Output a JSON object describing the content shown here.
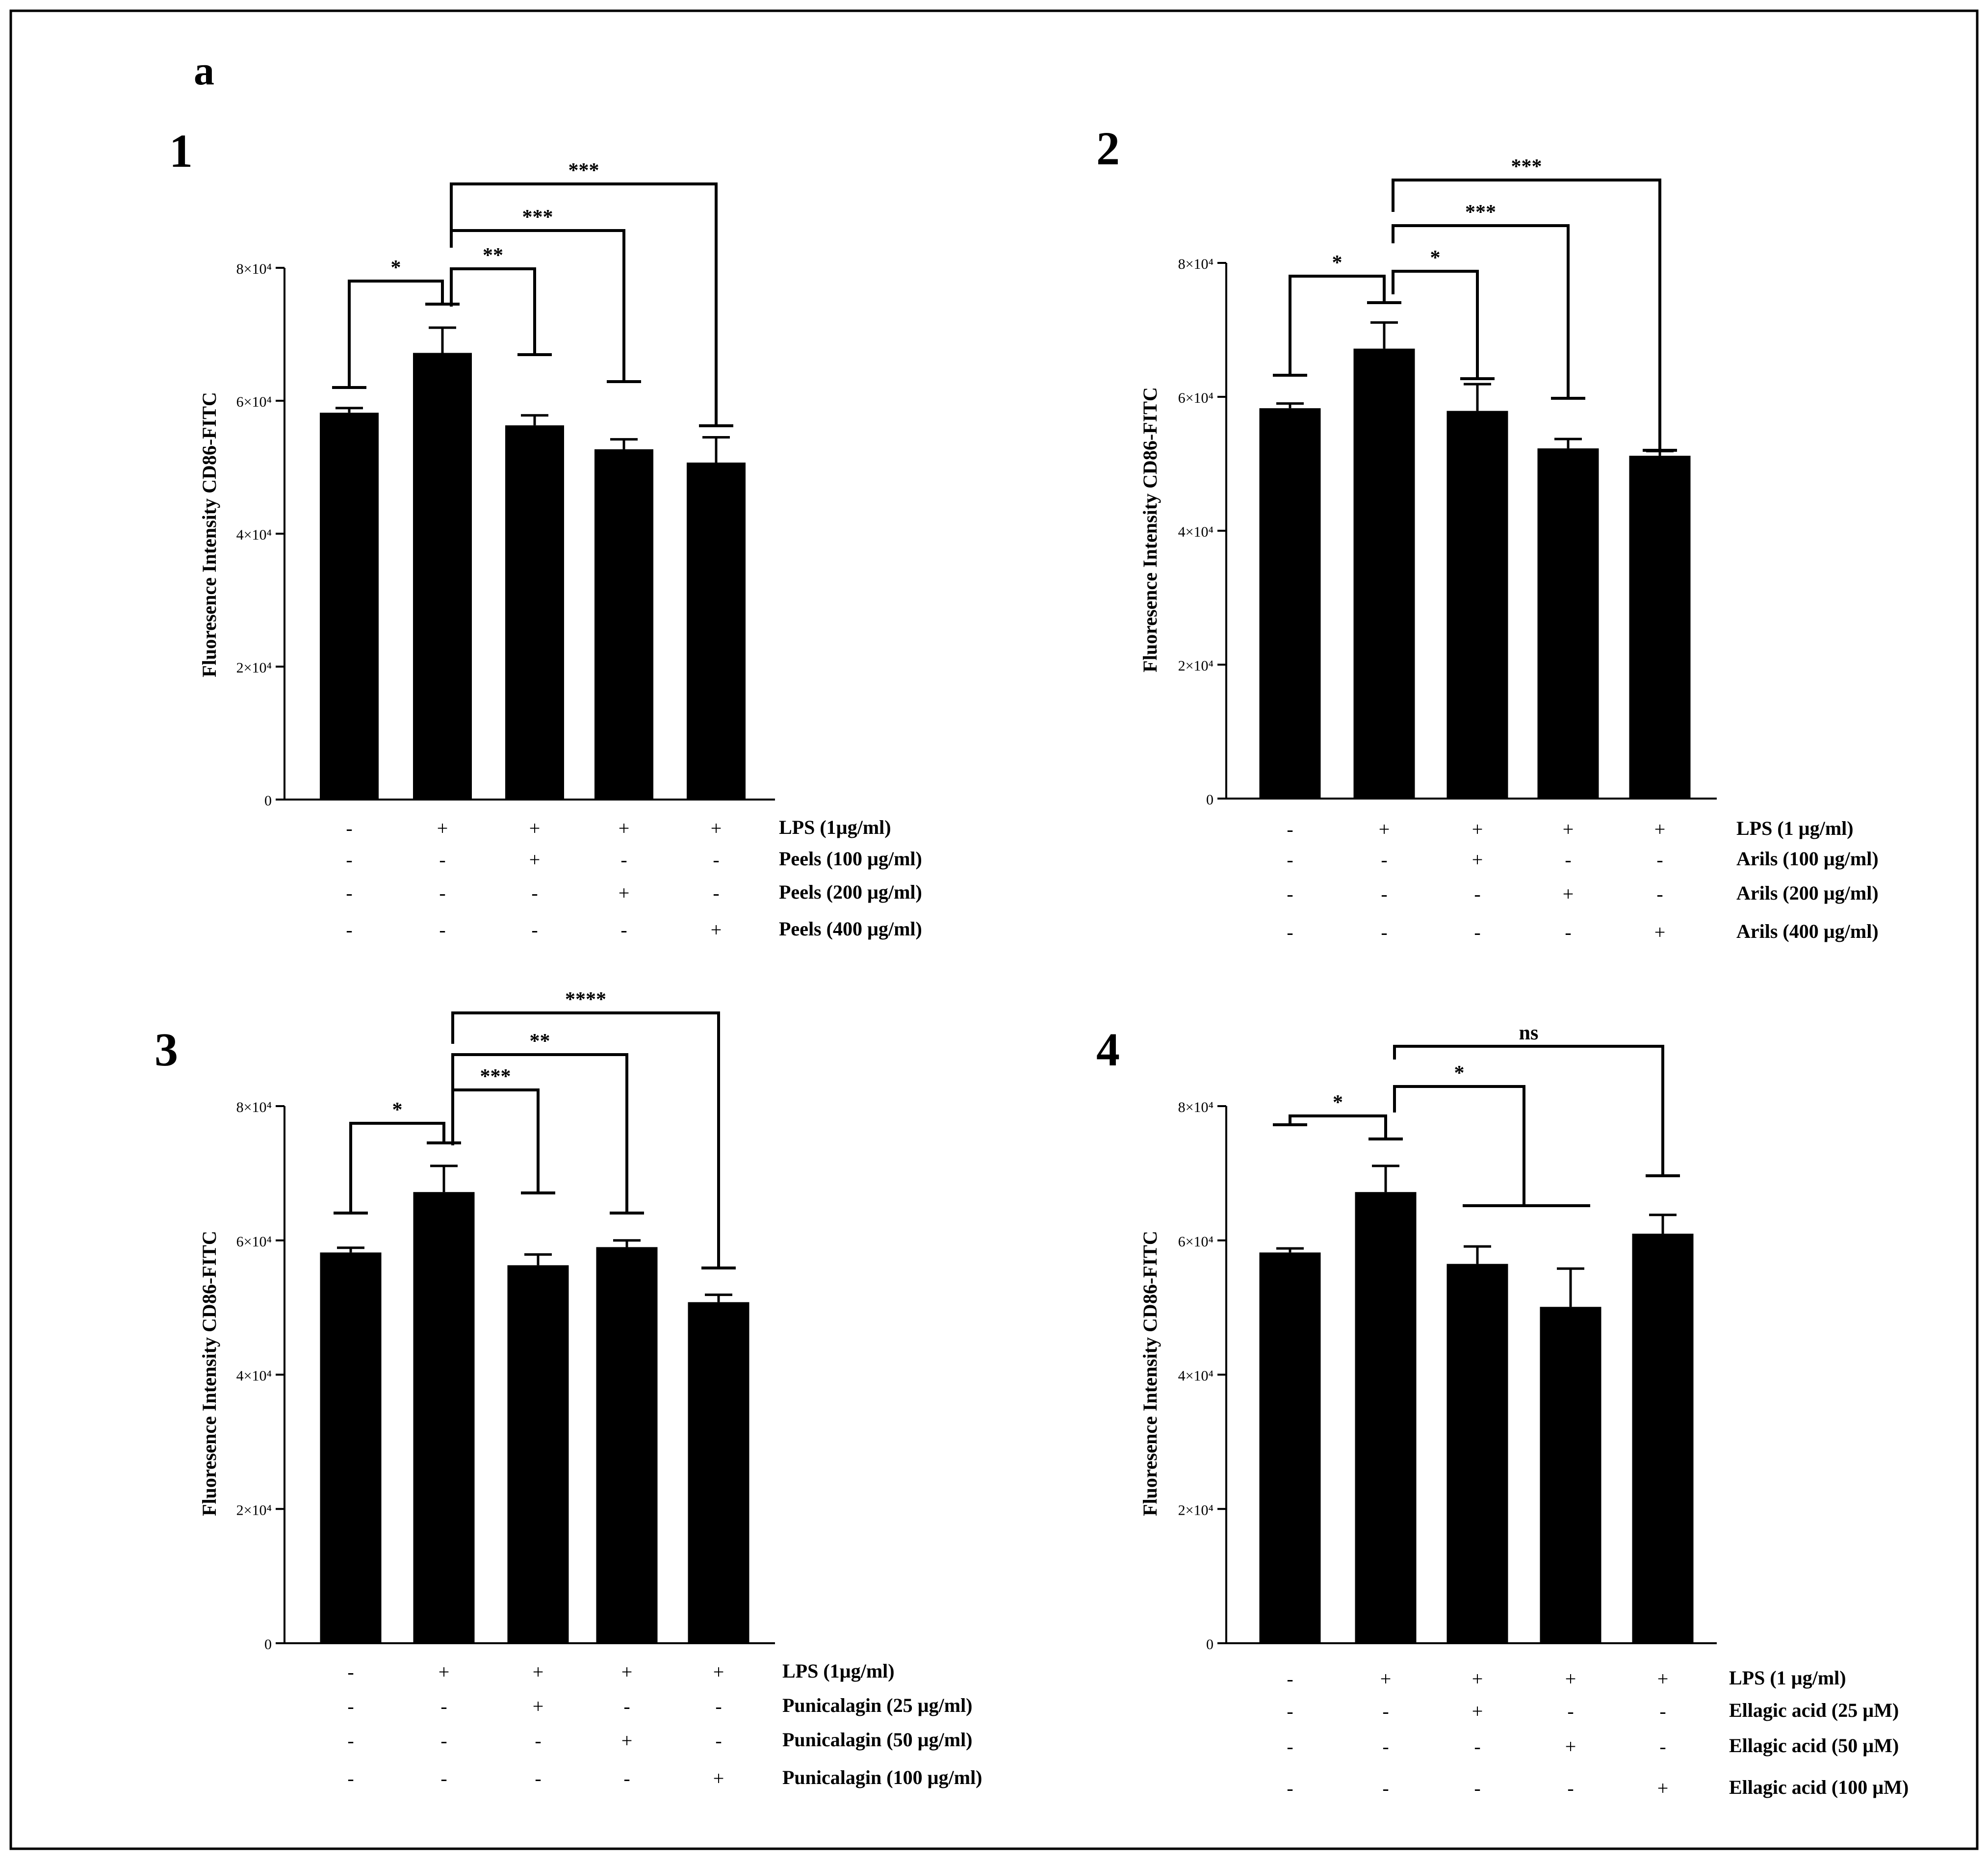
{
  "figure": {
    "label": "a",
    "y_axis_label": "Fluoresence Intensity CD86-FITC",
    "y_ticks": [
      {
        "value": 0,
        "label": "0"
      },
      {
        "value": 20000,
        "label": "2×10⁴"
      },
      {
        "value": 40000,
        "label": "4×10⁴"
      },
      {
        "value": 60000,
        "label": "6×10⁴"
      },
      {
        "value": 80000,
        "label": "8×10⁴"
      }
    ],
    "colors": {
      "bar": "#000000",
      "text": "#000000",
      "frame": "#000000",
      "background": "#ffffff"
    }
  },
  "chart_data": [
    {
      "type": "bar",
      "panel_label": "1",
      "ylabel": "Fluoresence Intensity CD86-FITC",
      "ylim": [
        0,
        80000
      ],
      "values": [
        58200,
        67200,
        56300,
        52700,
        50700
      ],
      "errors": [
        700,
        3800,
        1500,
        1500,
        3800
      ],
      "treatments": [
        {
          "label": "LPS  (1µg/ml)",
          "signs": [
            "-",
            "+",
            "+",
            "+",
            "+"
          ]
        },
        {
          "label": "Peels (100 µg/ml)",
          "signs": [
            "-",
            "-",
            "+",
            "-",
            "-"
          ]
        },
        {
          "label": "Peels (200 µg/ml)",
          "signs": [
            "-",
            "-",
            "-",
            "+",
            "-"
          ]
        },
        {
          "label": "Peels (400 µg/ml)",
          "signs": [
            "-",
            "-",
            "-",
            "-",
            "+"
          ]
        }
      ],
      "comparisons": [
        {
          "from": 0,
          "to": 1,
          "label": "*"
        },
        {
          "from": 1,
          "to": 2,
          "label": "**"
        },
        {
          "from": 1,
          "to": 3,
          "label": "***"
        },
        {
          "from": 1,
          "to": 4,
          "label": "***"
        }
      ]
    },
    {
      "type": "bar",
      "panel_label": "2",
      "ylabel": "Fluoresence Intensity CD86-FITC",
      "ylim": [
        0,
        80000
      ],
      "values": [
        58300,
        67200,
        57900,
        52300,
        51200
      ],
      "errors": [
        700,
        3900,
        4000,
        1400,
        700
      ],
      "treatments": [
        {
          "label": "LPS  (1 µg/ml)",
          "signs": [
            "-",
            "+",
            "+",
            "+",
            "+"
          ]
        },
        {
          "label": "Arils (100 µg/ml)",
          "signs": [
            "-",
            "-",
            "+",
            "-",
            "-"
          ]
        },
        {
          "label": "Arils (200 µg/ml)",
          "signs": [
            "-",
            "-",
            "-",
            "+",
            "-"
          ]
        },
        {
          "label": "Arils (400 µg/ml)",
          "signs": [
            "-",
            "-",
            "-",
            "-",
            "+"
          ]
        }
      ],
      "comparisons": [
        {
          "from": 0,
          "to": 1,
          "label": "*"
        },
        {
          "from": 1,
          "to": 2,
          "label": "*"
        },
        {
          "from": 1,
          "to": 3,
          "label": "***"
        },
        {
          "from": 1,
          "to": 4,
          "label": "***"
        }
      ]
    },
    {
      "type": "bar",
      "panel_label": "3",
      "ylabel": "Fluoresence Intensity CD86-FITC",
      "ylim": [
        0,
        80000
      ],
      "values": [
        58200,
        67200,
        56300,
        59000,
        50800
      ],
      "errors": [
        700,
        3900,
        1600,
        1000,
        1100
      ],
      "treatments": [
        {
          "label": "LPS  (1µg/ml)",
          "signs": [
            "-",
            "+",
            "+",
            "+",
            "+"
          ]
        },
        {
          "label": "Punicalagin (25 µg/ml)",
          "signs": [
            "-",
            "-",
            "+",
            "-",
            "-"
          ]
        },
        {
          "label": "Punicalagin (50 µg/ml)",
          "signs": [
            "-",
            "-",
            "-",
            "+",
            "-"
          ]
        },
        {
          "label": "Punicalagin (100 µg/ml)",
          "signs": [
            "-",
            "-",
            "-",
            "-",
            "+"
          ]
        }
      ],
      "comparisons": [
        {
          "from": 0,
          "to": 1,
          "label": "*"
        },
        {
          "from": 1,
          "to": 2,
          "label": "***"
        },
        {
          "from": 1,
          "to": 3,
          "label": "**"
        },
        {
          "from": 1,
          "to": 4,
          "label": "****"
        }
      ]
    },
    {
      "type": "bar",
      "panel_label": "4",
      "ylabel": "Fluoresence Intensity CD86-FITC",
      "ylim": [
        0,
        80000
      ],
      "values": [
        58200,
        67200,
        56500,
        50100,
        61000
      ],
      "errors": [
        600,
        3900,
        2600,
        5700,
        2800
      ],
      "treatments": [
        {
          "label": "LPS  (1 µg/ml)",
          "signs": [
            "-",
            "+",
            "+",
            "+",
            "+"
          ]
        },
        {
          "label": "Ellagic acid (25 µM)",
          "signs": [
            "-",
            "-",
            "+",
            "-",
            "-"
          ]
        },
        {
          "label": "Ellagic acid (50 µM)",
          "signs": [
            "-",
            "-",
            "-",
            "+",
            "-"
          ]
        },
        {
          "label": "Ellagic acid (100 µM)",
          "signs": [
            "-",
            "-",
            "-",
            "-",
            "+"
          ]
        }
      ],
      "comparisons": [
        {
          "from": 0,
          "to": 1,
          "label": "*"
        },
        {
          "from": 1,
          "to": [
            2,
            3
          ],
          "label": "*"
        },
        {
          "from": 1,
          "to": 4,
          "label": "ns"
        }
      ]
    }
  ]
}
